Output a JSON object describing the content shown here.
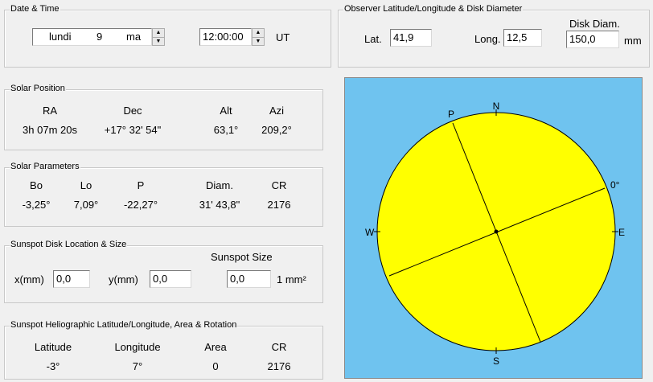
{
  "date_time": {
    "title": "Date & Time",
    "day_name": "lundi",
    "day": "9",
    "month": "ma",
    "time": "12:00:00",
    "time_unit": "UT"
  },
  "observer": {
    "title": "Observer Latitude/Longitude & Disk Diameter",
    "lat_label": "Lat.",
    "lat": "41,9",
    "long_label": "Long.",
    "long": "12,5",
    "disk_label": "Disk Diam.",
    "disk": "150,0",
    "disk_unit": "mm"
  },
  "solar_position": {
    "title": "Solar Position",
    "headers": [
      "RA",
      "Dec",
      "Alt",
      "Azi"
    ],
    "values": [
      "3h 07m 20s",
      "+17° 32' 54\"",
      "63,1°",
      "209,2°"
    ]
  },
  "solar_parameters": {
    "title": "Solar Parameters",
    "headers": [
      "Bo",
      "Lo",
      "P",
      "Diam.",
      "CR"
    ],
    "values": [
      "-3,25°",
      "7,09°",
      "-22,27°",
      "31' 43,8\"",
      "2176"
    ]
  },
  "sunspot_location": {
    "title": "Sunspot Disk Location & Size",
    "x_label": "x(mm)",
    "x": "0,0",
    "y_label": "y(mm)",
    "y": "0,0",
    "size_label": "Sunspot Size",
    "size": "0,0",
    "size_unit": "1 mm²"
  },
  "heliographic": {
    "title": "Sunspot Heliographic Latitude/Longitude, Area & Rotation",
    "headers": [
      "Latitude",
      "Longitude",
      "Area",
      "CR"
    ],
    "values": [
      "-3°",
      "7°",
      "0",
      "2176"
    ]
  },
  "disk_view": {
    "north": "N",
    "south": "S",
    "west": "W",
    "east": "E",
    "pole": "P",
    "zero": "0°"
  }
}
